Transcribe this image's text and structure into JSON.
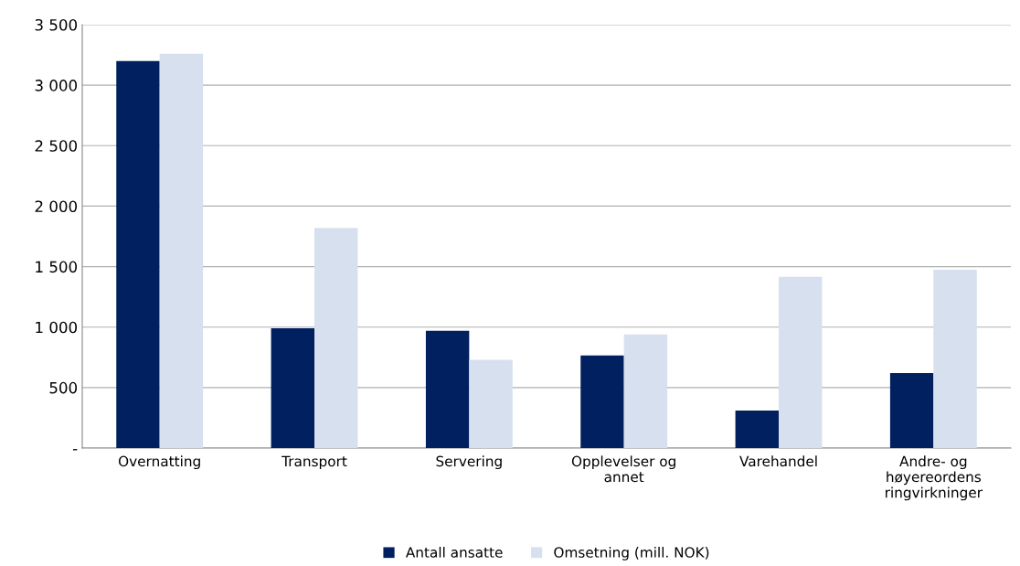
{
  "chart_data": {
    "type": "bar",
    "categories": [
      "Overnatting",
      "Transport",
      "Servering",
      "Opplevelser og\nannet",
      "Varehandel",
      "Andre- og\nhøyereordens\nringvirkninger"
    ],
    "series": [
      {
        "name": "Antall ansatte",
        "color": "#002060",
        "values": [
          3200,
          990,
          970,
          765,
          310,
          620
        ]
      },
      {
        "name": "Omsetning (mill. NOK)",
        "color": "#d6e0ee",
        "values": [
          3260,
          1820,
          730,
          940,
          1415,
          1475
        ]
      }
    ],
    "ylim": [
      0,
      3500
    ],
    "yticks": [
      {
        "value": 0,
        "label": "-"
      },
      {
        "value": 500,
        "label": "500"
      },
      {
        "value": 1000,
        "label": "1 000"
      },
      {
        "value": 1500,
        "label": "1 500"
      },
      {
        "value": 2000,
        "label": "2 000"
      },
      {
        "value": 2500,
        "label": "2 500"
      },
      {
        "value": 3000,
        "label": "3 000"
      },
      {
        "value": 3500,
        "label": "3 500"
      }
    ],
    "grid": "y",
    "legend": "bottom"
  }
}
